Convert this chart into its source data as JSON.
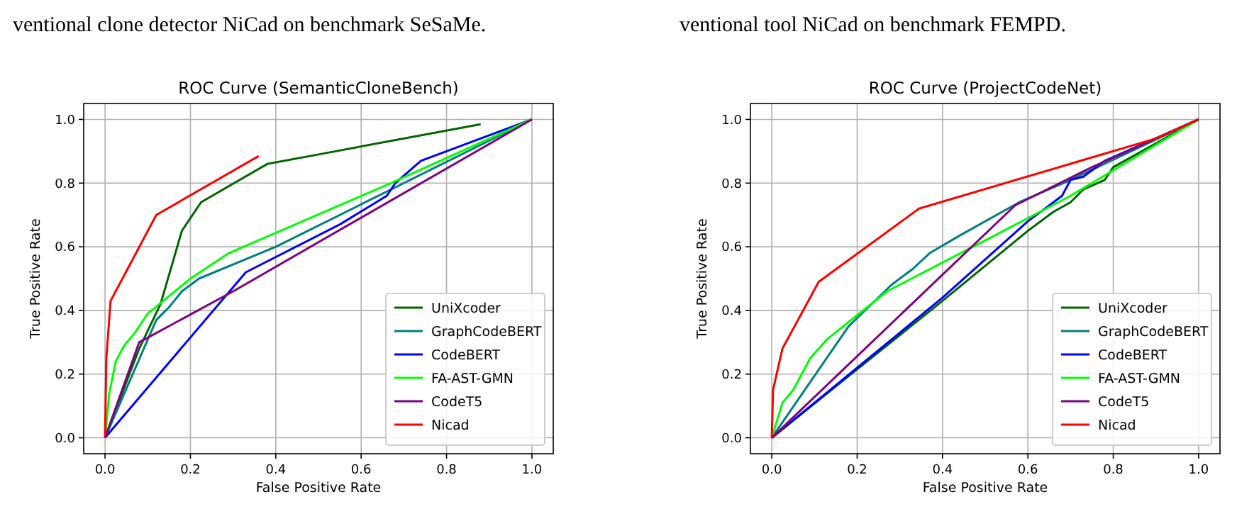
{
  "chart_data": [
    {
      "type": "line",
      "title": "ROC Curve (SemanticCloneBench)",
      "xlabel": "False Positive Rate",
      "ylabel": "True Positive Rate",
      "annotations": [
        "ventional clone detector NiCad on benchmark SeSaMe."
      ],
      "xlim": [
        -0.05,
        1.05
      ],
      "ylim": [
        -0.05,
        1.05
      ],
      "xticks": [
        {
          "value": 0,
          "label": "0.0"
        },
        {
          "value": 0.2,
          "label": "0.2"
        },
        {
          "value": 0.4,
          "label": "0.4"
        },
        {
          "value": 0.6,
          "label": "0.6"
        },
        {
          "value": 0.8,
          "label": "0.8"
        },
        {
          "value": 1,
          "label": "1.0"
        }
      ],
      "yticks": [
        {
          "value": 0,
          "label": "0.0"
        },
        {
          "value": 0.2,
          "label": "0.2"
        },
        {
          "value": 0.4,
          "label": "0.4"
        },
        {
          "value": 0.6,
          "label": "0.6"
        },
        {
          "value": 0.8,
          "label": "0.8"
        },
        {
          "value": 1,
          "label": "1.0"
        }
      ],
      "grid": true,
      "legend": "bottom right",
      "series": [
        {
          "name": "UniXcoder",
          "color": "#006400",
          "x": [
            0,
            0.08,
            0.13,
            0.18,
            0.225,
            0.38,
            0.5,
            0.88
          ],
          "values": [
            0,
            0.28,
            0.42,
            0.65,
            0.74,
            0.86,
            0.89,
            0.985
          ]
        },
        {
          "name": "GraphCodeBERT",
          "color": "#008080",
          "x": [
            0,
            0.12,
            0.15,
            0.18,
            0.22,
            0.4,
            0.67,
            1
          ],
          "values": [
            0,
            0.37,
            0.41,
            0.46,
            0.5,
            0.6,
            0.78,
            1
          ]
        },
        {
          "name": "CodeBERT",
          "color": "#0000ff",
          "x": [
            0,
            0.33,
            0.55,
            0.66,
            0.68,
            0.74,
            1
          ],
          "values": [
            0,
            0.52,
            0.67,
            0.76,
            0.8,
            0.87,
            1
          ]
        },
        {
          "name": "FA-AST-GMN",
          "color": "#00ff00",
          "x": [
            0,
            0.01,
            0.025,
            0.045,
            0.07,
            0.1,
            0.2,
            0.29,
            0.67,
            1
          ],
          "values": [
            0,
            0.14,
            0.24,
            0.29,
            0.33,
            0.39,
            0.5,
            0.58,
            0.8,
            1
          ]
        },
        {
          "name": "CodeT5",
          "color": "#800080",
          "x": [
            0,
            0.08,
            0.3,
            1
          ],
          "values": [
            0,
            0.3,
            0.46,
            1
          ]
        },
        {
          "name": "Nicad",
          "color": "#ff0000",
          "x": [
            0,
            0.003,
            0.013,
            0.12,
            0.36
          ],
          "values": [
            0,
            0.25,
            0.43,
            0.7,
            0.885
          ]
        }
      ]
    },
    {
      "type": "line",
      "title": "ROC Curve (ProjectCodeNet)",
      "xlabel": "False Positive Rate",
      "ylabel": "True Positive Rate",
      "annotations": [
        "ventional tool NiCad on benchmark FEMPD."
      ],
      "xlim": [
        -0.05,
        1.05
      ],
      "ylim": [
        -0.05,
        1.05
      ],
      "xticks": [
        {
          "value": 0,
          "label": "0.0"
        },
        {
          "value": 0.2,
          "label": "0.2"
        },
        {
          "value": 0.4,
          "label": "0.4"
        },
        {
          "value": 0.6,
          "label": "0.6"
        },
        {
          "value": 0.8,
          "label": "0.8"
        },
        {
          "value": 1,
          "label": "1.0"
        }
      ],
      "yticks": [
        {
          "value": 0,
          "label": "0.0"
        },
        {
          "value": 0.2,
          "label": "0.2"
        },
        {
          "value": 0.4,
          "label": "0.4"
        },
        {
          "value": 0.6,
          "label": "0.6"
        },
        {
          "value": 0.8,
          "label": "0.8"
        },
        {
          "value": 1,
          "label": "1.0"
        }
      ],
      "grid": true,
      "legend": "bottom right",
      "series": [
        {
          "name": "UniXcoder",
          "color": "#006400",
          "x": [
            0,
            0.4,
            0.6,
            0.66,
            0.7,
            0.73,
            0.78,
            0.8,
            1
          ],
          "values": [
            0,
            0.43,
            0.65,
            0.71,
            0.74,
            0.78,
            0.81,
            0.85,
            1
          ]
        },
        {
          "name": "GraphCodeBERT",
          "color": "#008080",
          "x": [
            0,
            0.18,
            0.28,
            0.33,
            0.37,
            0.44,
            0.58,
            0.7,
            1
          ],
          "values": [
            0,
            0.35,
            0.48,
            0.53,
            0.58,
            0.635,
            0.74,
            0.81,
            1
          ]
        },
        {
          "name": "CodeBERT",
          "color": "#0000ff",
          "x": [
            0,
            0.4,
            0.6,
            0.68,
            0.7,
            0.73,
            0.78,
            1
          ],
          "values": [
            0,
            0.44,
            0.68,
            0.76,
            0.81,
            0.82,
            0.87,
            1
          ]
        },
        {
          "name": "FA-AST-GMN",
          "color": "#00ff00",
          "x": [
            0,
            0.025,
            0.05,
            0.09,
            0.13,
            0.27,
            0.5,
            0.7,
            1
          ],
          "values": [
            0,
            0.11,
            0.15,
            0.25,
            0.31,
            0.46,
            0.62,
            0.76,
            1
          ]
        },
        {
          "name": "CodeT5",
          "color": "#800080",
          "x": [
            0,
            0.57,
            0.6,
            0.75,
            1
          ],
          "values": [
            0,
            0.73,
            0.75,
            0.85,
            1
          ]
        },
        {
          "name": "Nicad",
          "color": "#ff0000",
          "x": [
            0,
            0.003,
            0.025,
            0.11,
            0.345,
            0.9,
            1
          ],
          "values": [
            0,
            0.15,
            0.28,
            0.49,
            0.72,
            0.94,
            1
          ]
        }
      ]
    }
  ]
}
